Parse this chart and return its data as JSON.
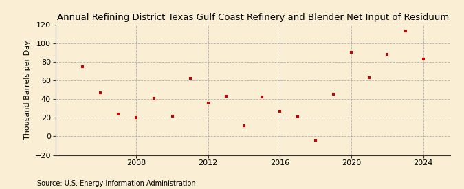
{
  "title": "Annual Refining District Texas Gulf Coast Refinery and Blender Net Input of Residuum",
  "ylabel": "Thousand Barrels per Day",
  "source": "Source: U.S. Energy Information Administration",
  "background_color": "#faefd4",
  "plot_bg_color": "#faefd4",
  "marker_color": "#cc0000",
  "grid_color": "#b0b0b0",
  "spine_color": "#333333",
  "years": [
    2005,
    2006,
    2007,
    2008,
    2009,
    2010,
    2011,
    2012,
    2013,
    2014,
    2015,
    2016,
    2017,
    2018,
    2019,
    2020,
    2021,
    2022,
    2023,
    2024
  ],
  "values": [
    75,
    47,
    24,
    20,
    41,
    22,
    62,
    36,
    43,
    11,
    42,
    27,
    21,
    -4,
    45,
    90,
    63,
    88,
    113,
    83
  ],
  "xlim": [
    2003.5,
    2025.5
  ],
  "ylim": [
    -20,
    120
  ],
  "yticks": [
    -20,
    0,
    20,
    40,
    60,
    80,
    100,
    120
  ],
  "xticks": [
    2008,
    2012,
    2016,
    2020,
    2024
  ],
  "title_fontsize": 9.5,
  "label_fontsize": 8,
  "tick_fontsize": 8,
  "source_fontsize": 7
}
